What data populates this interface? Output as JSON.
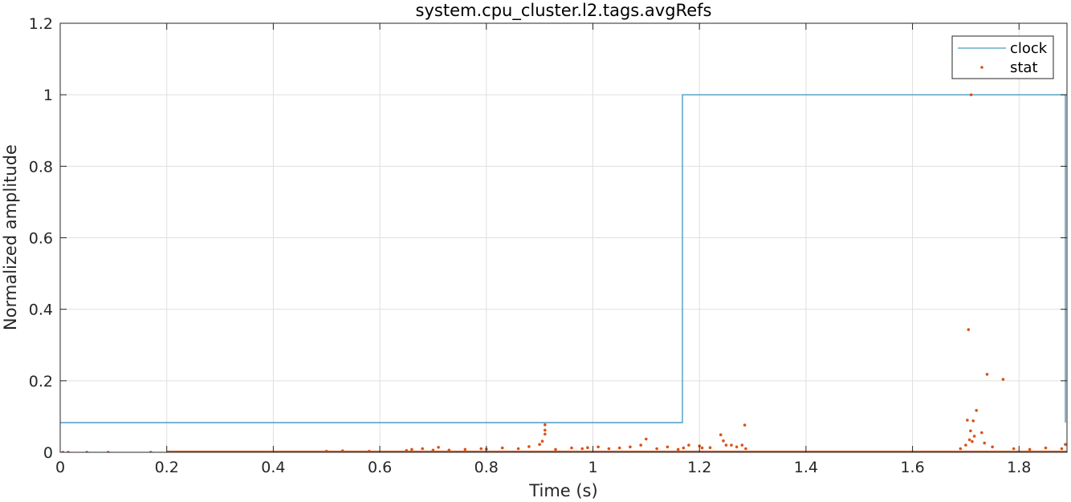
{
  "chart_data": {
    "type": "line",
    "title": "system.cpu_cluster.l2.tags.avgRefs",
    "xlabel": "Time (s)",
    "ylabel": "Normalized amplitude",
    "xlim": [
      0,
      1.89
    ],
    "ylim": [
      0,
      1.2
    ],
    "grid": true,
    "legend_position": "top-right",
    "x_ticks": [
      0,
      0.2,
      0.4,
      0.6,
      0.8,
      1,
      1.2,
      1.4,
      1.6,
      1.8
    ],
    "x_tick_labels": [
      "0",
      "0.2",
      "0.4",
      "0.6",
      "0.8",
      "1",
      "1.2",
      "1.4",
      "1.6",
      "1.8"
    ],
    "y_ticks": [
      0,
      0.2,
      0.4,
      0.6,
      0.8,
      1,
      1.2
    ],
    "y_tick_labels": [
      "0",
      "0.2",
      "0.4",
      "0.6",
      "0.8",
      "1",
      "1.2"
    ],
    "colors": {
      "clock": "#4a9cc4",
      "stat": "#d95319"
    },
    "series": [
      {
        "name": "clock",
        "kind": "step-line",
        "x": [
          0,
          1.168,
          1.168,
          1.887,
          1.887
        ],
        "y": [
          0.083,
          0.083,
          1.0,
          1.0,
          0.083
        ]
      },
      {
        "name": "stat",
        "kind": "scatter",
        "x": [
          0.005,
          0.015,
          0.05,
          0.09,
          0.17,
          0.21,
          0.35,
          0.5,
          0.53,
          0.58,
          0.65,
          0.66,
          0.68,
          0.7,
          0.71,
          0.73,
          0.76,
          0.79,
          0.8,
          0.83,
          0.86,
          0.88,
          0.9,
          0.905,
          0.91,
          0.91,
          0.91,
          0.93,
          0.96,
          0.98,
          0.99,
          1.01,
          1.03,
          1.05,
          1.07,
          1.09,
          1.1,
          1.12,
          1.14,
          1.16,
          1.17,
          1.18,
          1.2,
          1.205,
          1.22,
          1.24,
          1.245,
          1.25,
          1.26,
          1.27,
          1.28,
          1.285,
          1.287,
          1.69,
          1.7,
          1.703,
          1.705,
          1.707,
          1.709,
          1.71,
          1.712,
          1.714,
          1.716,
          1.72,
          1.73,
          1.735,
          1.74,
          1.75,
          1.77,
          1.79,
          1.82,
          1.85,
          1.88,
          1.887
        ],
        "y": [
          0.0,
          0.0,
          0.0,
          0.0,
          0.0,
          0.0,
          0.0,
          0.003,
          0.004,
          0.003,
          0.005,
          0.008,
          0.01,
          0.006,
          0.014,
          0.006,
          0.008,
          0.01,
          0.009,
          0.012,
          0.01,
          0.016,
          0.022,
          0.031,
          0.051,
          0.062,
          0.077,
          0.008,
          0.012,
          0.01,
          0.013,
          0.015,
          0.01,
          0.012,
          0.015,
          0.02,
          0.037,
          0.01,
          0.015,
          0.008,
          0.012,
          0.02,
          0.018,
          0.012,
          0.013,
          0.049,
          0.032,
          0.02,
          0.02,
          0.015,
          0.02,
          0.076,
          0.01,
          0.01,
          0.02,
          0.09,
          0.343,
          0.035,
          0.06,
          1.0,
          0.03,
          0.088,
          0.045,
          0.117,
          0.055,
          0.026,
          0.218,
          0.015,
          0.204,
          0.01,
          0.008,
          0.012,
          0.01,
          0.022
        ]
      }
    ]
  }
}
